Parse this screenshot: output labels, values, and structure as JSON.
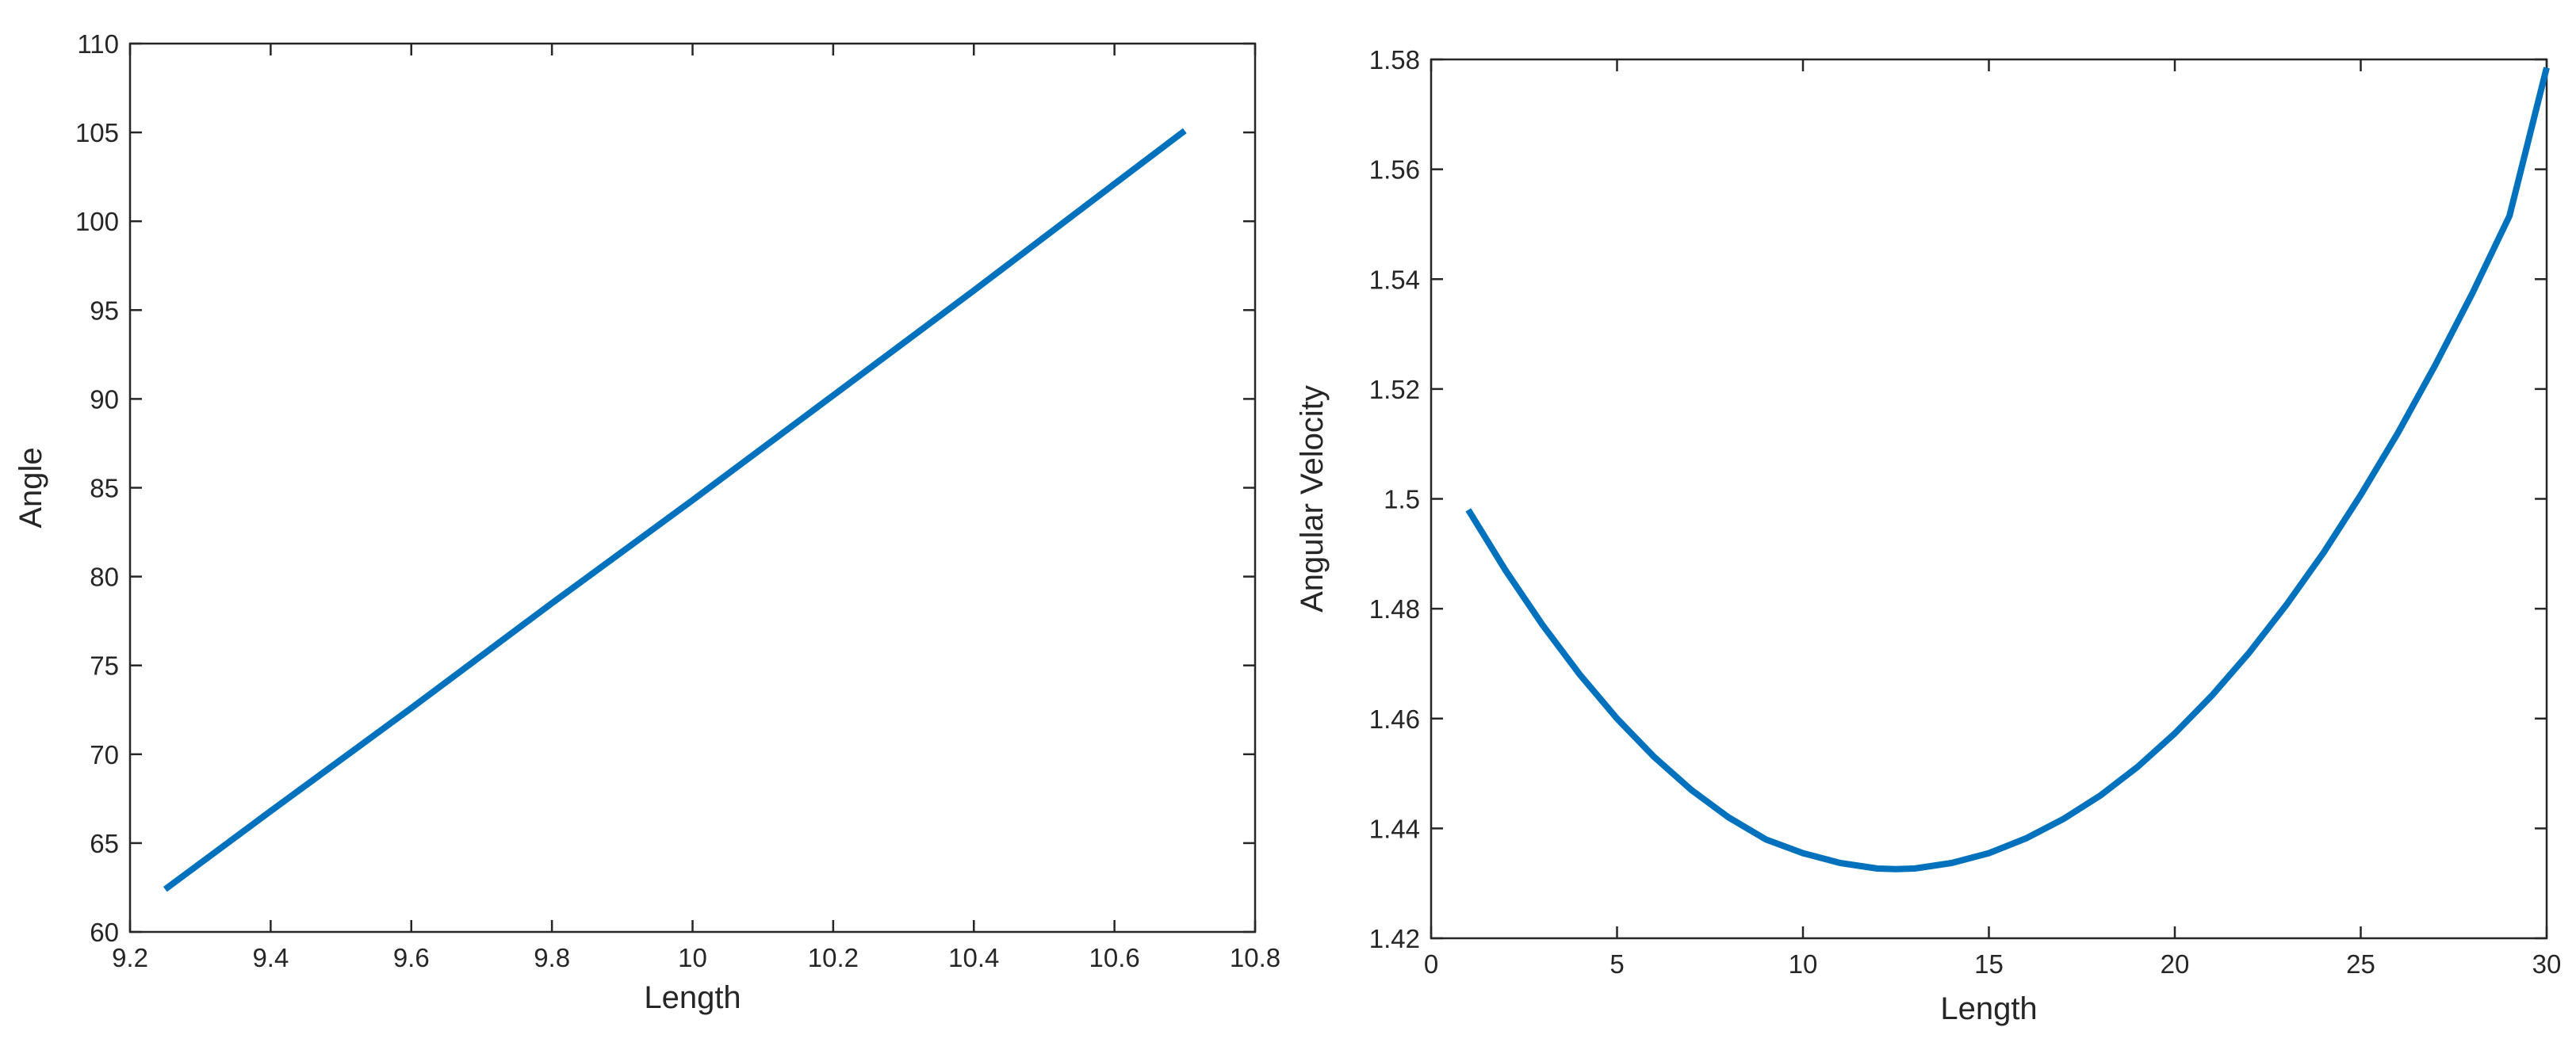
{
  "figure": {
    "background": "#ffffff",
    "axis_color": "#262626",
    "line_color": "#0072BD"
  },
  "chart_data": [
    {
      "type": "line",
      "title": "",
      "xlabel": "Length",
      "ylabel": "Angle",
      "xlim": [
        9.2,
        10.8
      ],
      "ylim": [
        60,
        110
      ],
      "xticks": [
        9.2,
        9.4,
        9.6,
        9.8,
        10,
        10.2,
        10.4,
        10.6,
        10.8
      ],
      "xtick_labels": [
        "9.2",
        "9.4",
        "9.6",
        "9.8",
        "10",
        "10.2",
        "10.4",
        "10.6",
        "10.8"
      ],
      "yticks": [
        60,
        65,
        70,
        75,
        80,
        85,
        90,
        95,
        100,
        105,
        110
      ],
      "ytick_labels": [
        "60",
        "65",
        "70",
        "75",
        "80",
        "85",
        "90",
        "95",
        "100",
        "105",
        "110"
      ],
      "grid": false,
      "series": [
        {
          "x": [
            9.25,
            9.4,
            9.6,
            9.8,
            10.0,
            10.2,
            10.4,
            10.6,
            10.7
          ],
          "y": [
            62.4,
            66.8,
            72.6,
            78.5,
            84.3,
            90.2,
            96.1,
            102.1,
            105.1
          ]
        }
      ]
    },
    {
      "type": "line",
      "title": "",
      "xlabel": "Length",
      "ylabel": "Angular Velocity",
      "xlim": [
        0,
        30
      ],
      "ylim": [
        1.42,
        1.58
      ],
      "xticks": [
        0,
        5,
        10,
        15,
        20,
        25,
        30
      ],
      "xtick_labels": [
        "0",
        "5",
        "10",
        "15",
        "20",
        "25",
        "30"
      ],
      "yticks": [
        1.42,
        1.44,
        1.46,
        1.48,
        1.5,
        1.52,
        1.54,
        1.56,
        1.58
      ],
      "ytick_labels": [
        "1.42",
        "1.44",
        "1.46",
        "1.48",
        "1.5",
        "1.52",
        "1.54",
        "1.56",
        "1.58"
      ],
      "grid": false,
      "series": [
        {
          "x": [
            1,
            2,
            3,
            4,
            5,
            6,
            7,
            8,
            9,
            10,
            11,
            12,
            12.5,
            13,
            14,
            15,
            16,
            17,
            18,
            19,
            20,
            21,
            22,
            23,
            24,
            25,
            26,
            27,
            28,
            29,
            30
          ],
          "y": [
            1.498,
            1.487,
            1.477,
            1.468,
            1.46,
            1.453,
            1.447,
            1.442,
            1.438,
            1.4355,
            1.4337,
            1.4327,
            1.4326,
            1.4327,
            1.4337,
            1.4355,
            1.4382,
            1.4417,
            1.446,
            1.4512,
            1.4573,
            1.4642,
            1.472,
            1.4807,
            1.4902,
            1.5007,
            1.512,
            1.5243,
            1.5374,
            1.5515,
            1.5785
          ]
        }
      ]
    }
  ]
}
